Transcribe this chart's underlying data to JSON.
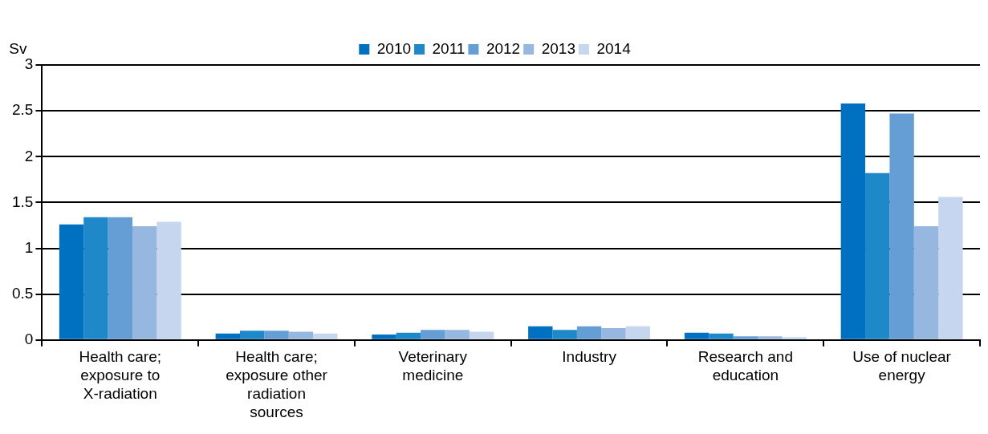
{
  "chart_data": {
    "type": "bar",
    "ylabel": "Sv",
    "categories": [
      "Health care; exposure to X-radiation",
      "Health care; exposure other radiation sources",
      "Veterinary medicine",
      "Industry",
      "Research and education",
      "Use of nuclear energy"
    ],
    "series": [
      {
        "name": "2010",
        "color": "#0070c0",
        "values": [
          1.26,
          0.07,
          0.06,
          0.15,
          0.08,
          2.58
        ]
      },
      {
        "name": "2011",
        "color": "#1f88c9",
        "values": [
          1.34,
          0.1,
          0.08,
          0.11,
          0.07,
          1.82
        ]
      },
      {
        "name": "2012",
        "color": "#659ed4",
        "values": [
          1.34,
          0.1,
          0.11,
          0.15,
          0.04,
          2.47
        ]
      },
      {
        "name": "2013",
        "color": "#96b8e0",
        "values": [
          1.24,
          0.09,
          0.11,
          0.13,
          0.04,
          1.24
        ]
      },
      {
        "name": "2014",
        "color": "#c6d6ef",
        "values": [
          1.29,
          0.07,
          0.09,
          0.15,
          0.03,
          1.56
        ]
      }
    ],
    "ylim": [
      0,
      3
    ],
    "yticks": [
      0,
      0.5,
      1,
      1.5,
      2,
      2.5,
      3
    ],
    "grid": "y",
    "legend": "top"
  }
}
